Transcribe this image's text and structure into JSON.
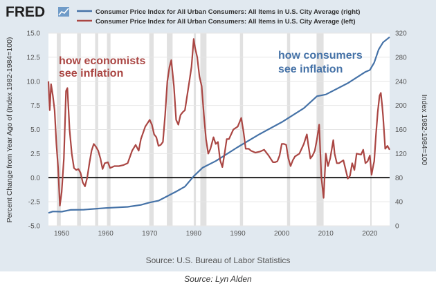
{
  "header": {
    "logo_text": "FRED",
    "legend": [
      {
        "label": "Consumer Price Index for All Urban Consumers: All Items in U.S. City Average (right)",
        "color": "#4572a7"
      },
      {
        "label": "Consumer Price Index for All Urban Consumers: All Items in U.S. City Average (left)",
        "color": "#aa4643"
      }
    ]
  },
  "annotations": {
    "economists": [
      "how economists",
      "see inflation"
    ],
    "consumers": [
      "how consumers",
      "see inflation"
    ]
  },
  "footer": {
    "source": "Source: U.S. Bureau of Labor Statistics",
    "caption": "Source: Lyn Alden"
  },
  "chart_data": {
    "type": "line",
    "ylabel_left": "Percent Change from Year Ago of (Index 1982-1984=100)",
    "ylabel_right": "Index 1982-1984=100",
    "xlim": [
      1947,
      2024.5
    ],
    "ylim_left": [
      -5.0,
      15.0
    ],
    "ylim_right": [
      0,
      320
    ],
    "yticks_left": [
      "-5.0",
      "-2.5",
      "0.0",
      "2.5",
      "5.0",
      "7.5",
      "10.0",
      "12.5",
      "15.0"
    ],
    "yticks_right": [
      "0",
      "40",
      "80",
      "120",
      "160",
      "200",
      "240",
      "280",
      "320"
    ],
    "xticks": [
      "1950",
      "1960",
      "1970",
      "1980",
      "1990",
      "2000",
      "2010",
      "2020"
    ],
    "recessions": [
      [
        1948.9,
        1949.8
      ],
      [
        1953.5,
        1954.4
      ],
      [
        1957.6,
        1958.3
      ],
      [
        1960.3,
        1961.1
      ],
      [
        1969.9,
        1970.9
      ],
      [
        1973.9,
        1975.2
      ],
      [
        1980.0,
        1980.5
      ],
      [
        1981.5,
        1982.9
      ],
      [
        1990.5,
        1991.2
      ],
      [
        2001.2,
        2001.9
      ],
      [
        2007.9,
        2009.5
      ],
      [
        2020.1,
        2020.4
      ]
    ],
    "zero_line": 0,
    "series": [
      {
        "name": "Consumer Price Index for All Urban Consumers: All Items in U.S. City Average (right)",
        "axis": "right",
        "color": "#4572a7",
        "x": [
          1947,
          1948,
          1950,
          1952,
          1955,
          1960,
          1965,
          1968,
          1970,
          1972,
          1974,
          1976,
          1978,
          1980,
          1982,
          1985,
          1990,
          1995,
          2000,
          2005,
          2008,
          2010,
          2015,
          2019,
          2020,
          2021,
          2022,
          2023,
          2024.5
        ],
        "y": [
          21.5,
          23.8,
          23.5,
          26.5,
          26.8,
          29.6,
          31.5,
          34.8,
          38.8,
          41.8,
          49.3,
          56.9,
          65.2,
          82.4,
          96.5,
          107.6,
          130.7,
          152.4,
          172.2,
          195.3,
          215.3,
          218.1,
          237.0,
          255.7,
          258.8,
          271.0,
          292.7,
          304.7,
          313.5
        ]
      },
      {
        "name": "Consumer Price Index for All Urban Consumers: All Items in U.S. City Average (left)",
        "axis": "left",
        "color": "#aa4643",
        "x": [
          1947.0,
          1947.3,
          1947.6,
          1948.0,
          1948.4,
          1948.8,
          1949.2,
          1949.6,
          1950.0,
          1950.5,
          1951.0,
          1951.3,
          1951.8,
          1952.3,
          1952.8,
          1953.3,
          1953.8,
          1954.3,
          1954.8,
          1955.3,
          1955.8,
          1956.3,
          1956.8,
          1957.3,
          1957.8,
          1958.3,
          1958.8,
          1959.3,
          1959.8,
          1960.5,
          1961.0,
          1962.0,
          1963.0,
          1964.0,
          1965.0,
          1966.0,
          1966.8,
          1967.5,
          1968.0,
          1969.0,
          1970.0,
          1970.5,
          1971.0,
          1971.5,
          1972.0,
          1972.5,
          1973.0,
          1973.5,
          1974.0,
          1974.5,
          1974.9,
          1975.5,
          1976.0,
          1976.5,
          1977.0,
          1977.5,
          1978.0,
          1978.5,
          1979.0,
          1979.5,
          1980.0,
          1980.3,
          1980.8,
          1981.3,
          1981.8,
          1982.3,
          1982.8,
          1983.3,
          1983.8,
          1984.5,
          1985.0,
          1985.5,
          1986.0,
          1986.5,
          1987.0,
          1987.5,
          1988.0,
          1989.0,
          1990.0,
          1990.8,
          1991.3,
          1991.8,
          1992.5,
          1993.0,
          1994.0,
          1995.0,
          1996.0,
          1997.0,
          1998.0,
          1998.5,
          1999.0,
          1999.5,
          2000.0,
          2000.5,
          2001.0,
          2001.5,
          2002.0,
          2002.5,
          2003.0,
          2004.0,
          2005.0,
          2005.7,
          2006.0,
          2006.5,
          2007.0,
          2007.5,
          2008.0,
          2008.5,
          2009.0,
          2009.5,
          2010.0,
          2010.5,
          2011.0,
          2011.7,
          2012.0,
          2012.5,
          2013.0,
          2014.0,
          2015.0,
          2015.5,
          2016.0,
          2016.5,
          2017.0,
          2018.0,
          2018.5,
          2019.0,
          2019.5,
          2020.0,
          2020.4,
          2020.8,
          2021.0,
          2021.4,
          2021.8,
          2022.2,
          2022.5,
          2022.8,
          2023.0,
          2023.5,
          2024.0,
          2024.5
        ],
        "y": [
          10.0,
          7.0,
          9.7,
          8.5,
          7.0,
          3.5,
          1.0,
          -2.9,
          -1.5,
          2.0,
          9.0,
          9.3,
          5.0,
          2.5,
          1.0,
          0.8,
          0.9,
          0.5,
          -0.5,
          -0.9,
          0.0,
          1.5,
          2.8,
          3.5,
          3.2,
          2.8,
          2.0,
          0.9,
          1.5,
          1.6,
          1.0,
          1.2,
          1.2,
          1.3,
          1.5,
          2.8,
          3.4,
          2.8,
          4.0,
          5.3,
          6.0,
          5.5,
          4.5,
          4.2,
          3.3,
          3.4,
          3.7,
          6.5,
          10.0,
          11.5,
          12.2,
          9.5,
          6.0,
          5.5,
          6.5,
          6.8,
          7.0,
          8.5,
          10.0,
          11.5,
          14.4,
          13.5,
          12.5,
          10.5,
          9.5,
          6.5,
          4.0,
          2.5,
          3.0,
          4.2,
          3.5,
          3.7,
          1.8,
          1.1,
          2.5,
          4.0,
          4.0,
          5.0,
          5.3,
          6.2,
          4.8,
          3.0,
          3.0,
          2.8,
          2.6,
          2.7,
          2.9,
          2.3,
          1.6,
          1.6,
          1.7,
          2.3,
          3.5,
          3.5,
          3.4,
          2.0,
          1.2,
          1.8,
          2.2,
          2.5,
          3.5,
          4.5,
          3.5,
          2.0,
          2.3,
          2.8,
          4.0,
          5.5,
          0.0,
          -2.1,
          2.5,
          1.2,
          2.0,
          3.9,
          2.5,
          1.5,
          1.5,
          1.8,
          -0.1,
          0.2,
          1.5,
          0.8,
          2.5,
          2.4,
          2.9,
          1.5,
          1.7,
          2.3,
          0.3,
          1.3,
          1.7,
          4.5,
          6.8,
          8.5,
          8.8,
          7.5,
          6.4,
          3.0,
          3.3,
          2.9
        ]
      }
    ]
  }
}
